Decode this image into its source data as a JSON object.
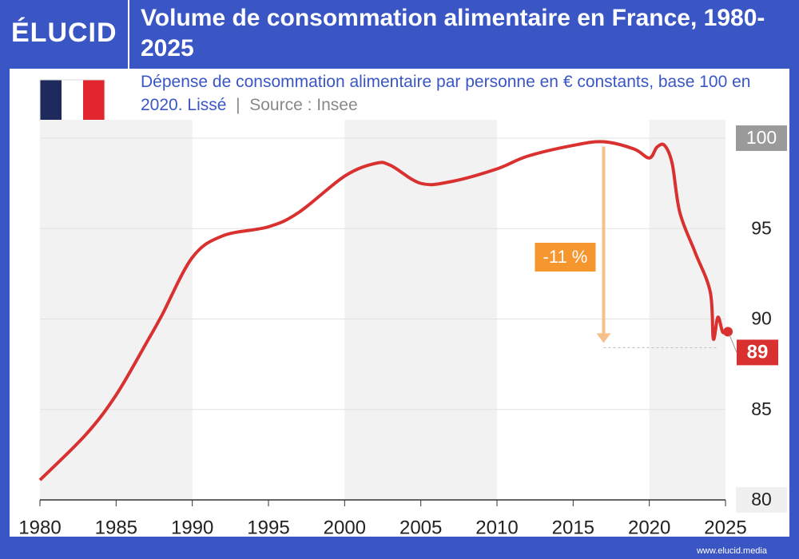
{
  "logo": "ÉLUCID",
  "footer": "www.elucid.media",
  "chart_data": {
    "type": "line",
    "title": "Volume de consommation alimentaire en France, 1980-2025",
    "subtitle": "Dépense de consommation alimentaire par personne en € constants, base 100 en 2020. Lissé",
    "source": "Source : Insee",
    "x": [
      1980,
      1983,
      1985,
      1987,
      1988,
      1990,
      1992,
      1995,
      1997,
      2000,
      2002,
      2003,
      2005,
      2007,
      2010,
      2012,
      2015,
      2017,
      2019,
      2020,
      2020.5,
      2021,
      2021.5,
      2022,
      2023,
      2024,
      2024.2,
      2024.5,
      2024.8,
      2025
    ],
    "values": [
      81.1,
      83.6,
      85.8,
      88.7,
      90.2,
      93.4,
      94.6,
      95.1,
      95.9,
      97.9,
      98.6,
      98.5,
      97.5,
      97.6,
      98.3,
      99.0,
      99.6,
      99.8,
      99.4,
      98.9,
      99.5,
      99.6,
      98.6,
      95.9,
      93.7,
      91.5,
      88.9,
      90.1,
      89.3,
      89.3
    ],
    "color": "#d93030",
    "end_label": "89",
    "annotation": "-11 %",
    "xlim": [
      1980,
      2025
    ],
    "ylim": [
      80,
      100
    ],
    "xticks": [
      1980,
      1985,
      1990,
      1995,
      2000,
      2005,
      2010,
      2015,
      2020,
      2025
    ],
    "yticks": [
      80,
      85,
      90,
      95,
      100
    ],
    "grid": true,
    "shaded_bands": [
      [
        1980,
        1990
      ],
      [
        2000,
        2010
      ],
      [
        2020,
        2025
      ]
    ]
  }
}
